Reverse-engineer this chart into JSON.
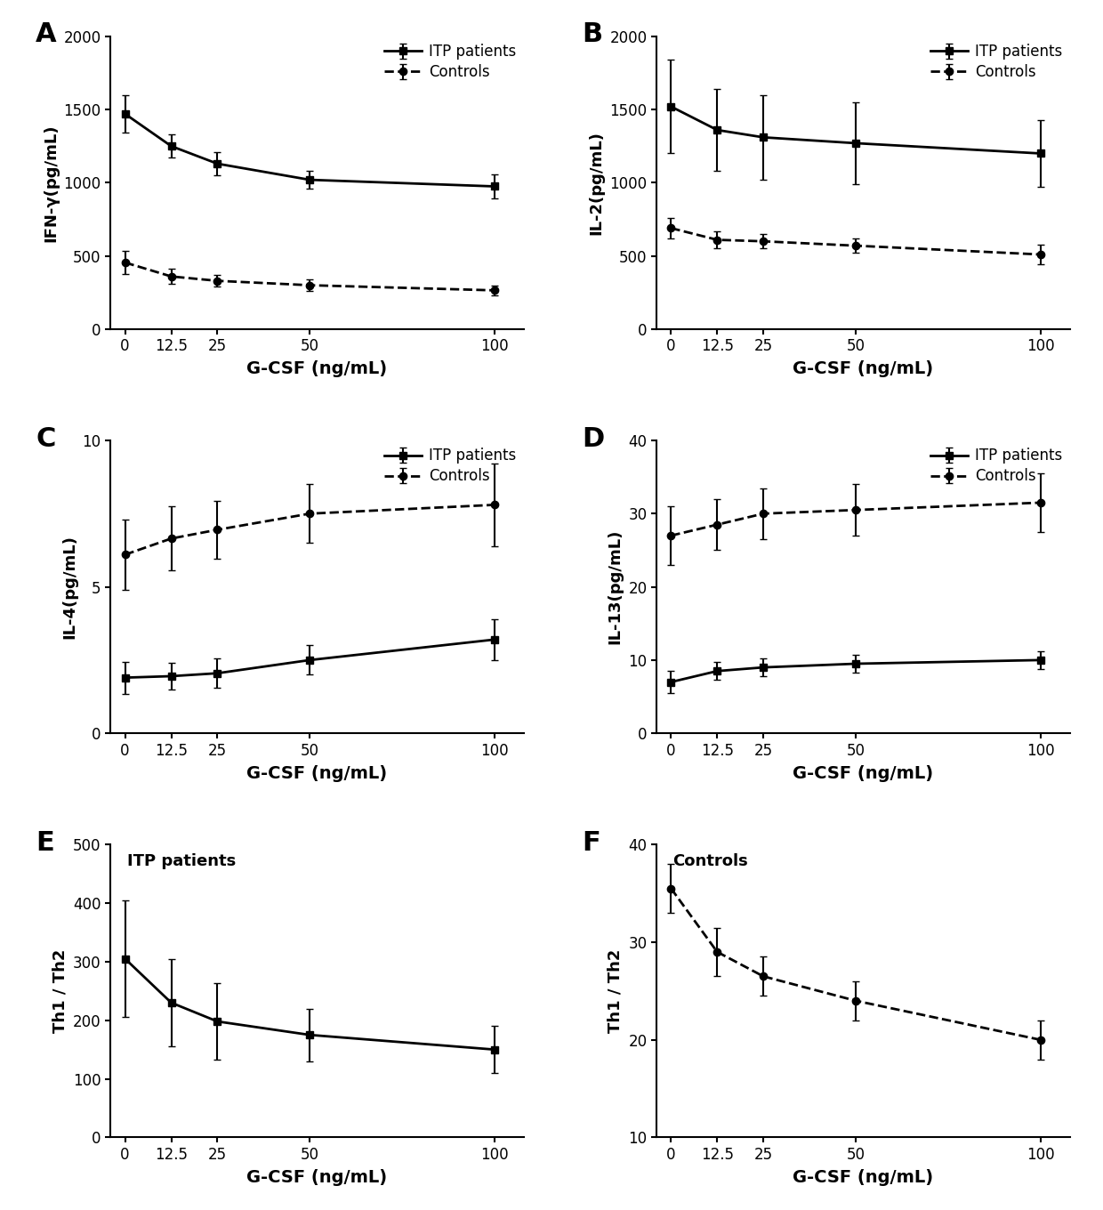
{
  "x": [
    0,
    12.5,
    25,
    50,
    100
  ],
  "panels": [
    {
      "label": "A",
      "ylabel": "IFN-γ(pg/mL)",
      "ylim": [
        0,
        2000
      ],
      "yticks": [
        0,
        500,
        1000,
        1500,
        2000
      ],
      "itp_y": [
        1470,
        1250,
        1130,
        1020,
        975
      ],
      "itp_yerr": [
        130,
        80,
        80,
        60,
        80
      ],
      "ctrl_y": [
        455,
        360,
        330,
        300,
        265
      ],
      "ctrl_yerr": [
        80,
        50,
        40,
        40,
        35
      ],
      "show_legend": true
    },
    {
      "label": "B",
      "ylabel": "IL-2(pg/mL)",
      "ylim": [
        0,
        2000
      ],
      "yticks": [
        0,
        500,
        1000,
        1500,
        2000
      ],
      "itp_y": [
        1520,
        1360,
        1310,
        1270,
        1200
      ],
      "itp_yerr": [
        320,
        280,
        290,
        280,
        230
      ],
      "ctrl_y": [
        690,
        610,
        600,
        570,
        510
      ],
      "ctrl_yerr": [
        70,
        60,
        50,
        50,
        65
      ],
      "show_legend": true
    },
    {
      "label": "C",
      "ylabel": "IL-4(pg/mL)",
      "ylim": [
        0,
        10
      ],
      "yticks": [
        0,
        5,
        10
      ],
      "itp_y": [
        1.9,
        1.95,
        2.05,
        2.5,
        3.2
      ],
      "itp_yerr": [
        0.55,
        0.45,
        0.5,
        0.5,
        0.7
      ],
      "ctrl_y": [
        6.1,
        6.65,
        6.95,
        7.5,
        7.8
      ],
      "ctrl_yerr": [
        1.2,
        1.1,
        1.0,
        1.0,
        1.4
      ],
      "show_legend": true
    },
    {
      "label": "D",
      "ylabel": "IL-13(pg/mL)",
      "ylim": [
        0,
        40
      ],
      "yticks": [
        0,
        10,
        20,
        30,
        40
      ],
      "itp_y": [
        7.0,
        8.5,
        9.0,
        9.5,
        10.0
      ],
      "itp_yerr": [
        1.5,
        1.2,
        1.2,
        1.2,
        1.2
      ],
      "ctrl_y": [
        27.0,
        28.5,
        30.0,
        30.5,
        31.5
      ],
      "ctrl_yerr": [
        4.0,
        3.5,
        3.5,
        3.5,
        4.0
      ],
      "show_legend": true
    },
    {
      "label": "E",
      "ylabel": "Th1 / Th2",
      "ylim": [
        0,
        500
      ],
      "yticks": [
        0,
        100,
        200,
        300,
        400,
        500
      ],
      "itp_y": [
        305,
        230,
        198,
        175,
        150
      ],
      "itp_yerr": [
        100,
        75,
        65,
        45,
        40
      ],
      "ctrl_y": null,
      "ctrl_yerr": null,
      "annotation": "ITP patients",
      "show_legend": false
    },
    {
      "label": "F",
      "ylabel": "Th1 / Th2",
      "ylim": [
        10,
        40
      ],
      "yticks": [
        10,
        20,
        30,
        40
      ],
      "itp_y": null,
      "itp_yerr": null,
      "ctrl_y": [
        35.5,
        29.0,
        26.5,
        24.0,
        20.0
      ],
      "ctrl_yerr": [
        2.5,
        2.5,
        2.0,
        2.0,
        2.0
      ],
      "annotation": "Controls",
      "show_legend": false
    }
  ],
  "xlabel": "G-CSF (ng/mL)",
  "xticks": [
    0,
    12.5,
    25,
    50,
    100
  ],
  "xticklabels": [
    "0",
    "12.5",
    "25",
    "50",
    "100"
  ],
  "xlim": [
    -4,
    108
  ],
  "itp_color": "#000000",
  "ctrl_color": "#000000",
  "itp_marker": "s",
  "ctrl_marker": "o",
  "itp_linestyle": "-",
  "ctrl_linestyle": "--",
  "linewidth": 2.0,
  "markersize": 6,
  "capsize": 3,
  "elinewidth": 1.5,
  "legend_itp": "ITP patients",
  "legend_ctrl": "Controls",
  "panel_label_fontsize": 22,
  "tick_fontsize": 12,
  "xlabel_fontsize": 14,
  "ylabel_fontsize": 13,
  "legend_fontsize": 12,
  "annotation_fontsize": 13
}
